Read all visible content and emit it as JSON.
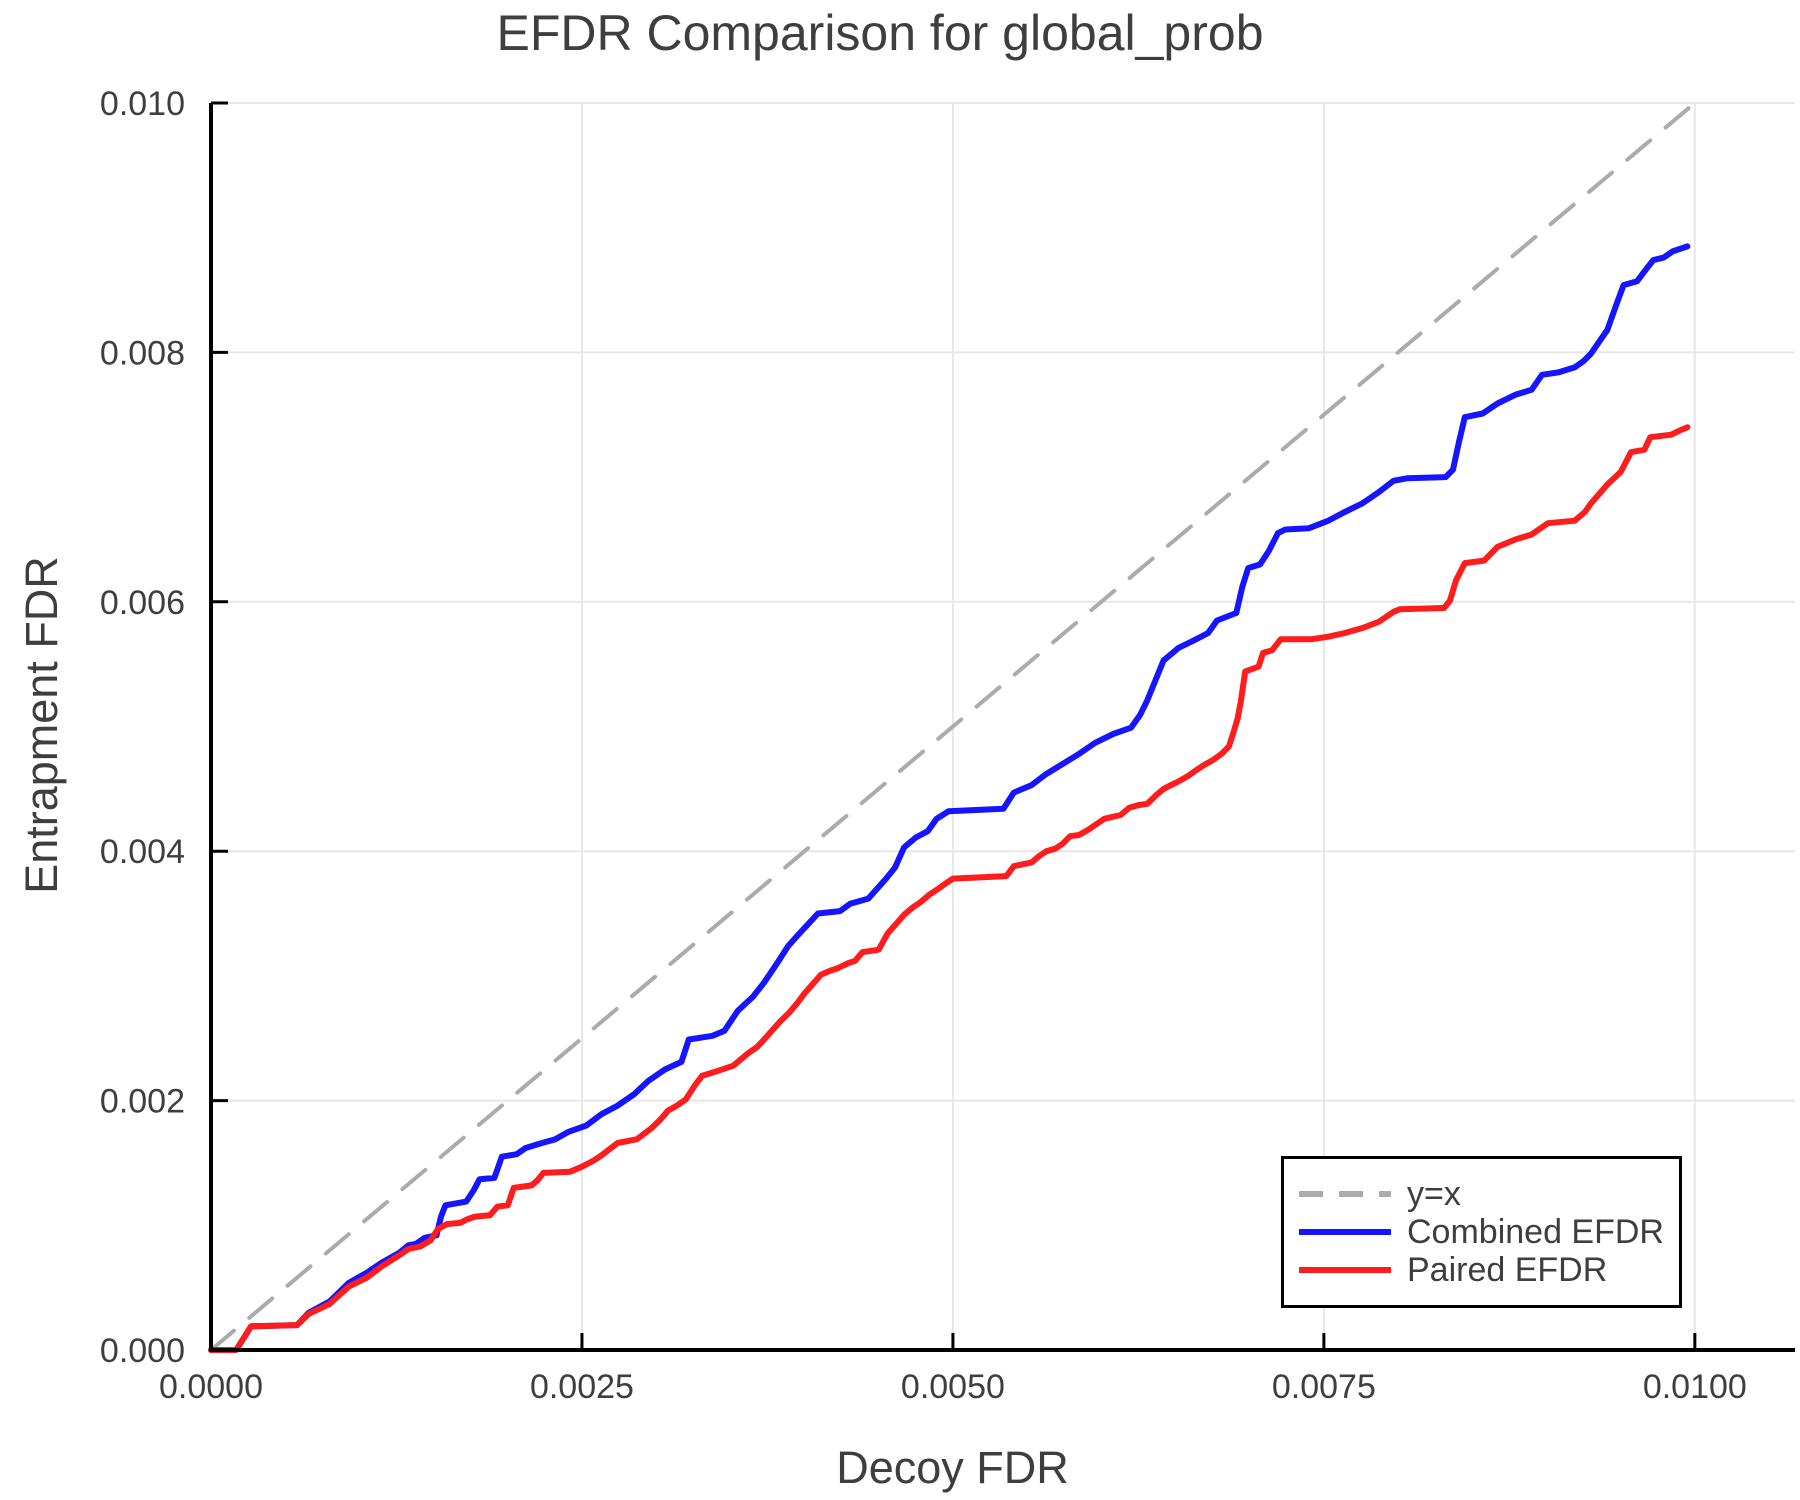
{
  "chart_data": {
    "type": "line",
    "title": "EFDR Comparison for global_prob",
    "xlabel": "Decoy FDR",
    "ylabel": "Entrapment FDR",
    "xlim": [
      0,
      0.010675
    ],
    "ylim": [
      0,
      0.01
    ],
    "grid": true,
    "legend_position": "lower right",
    "colors": {
      "text": "#3e3e3e",
      "axis": "#000000",
      "grid": "#e7e7e7"
    },
    "x_ticks": {
      "values": [
        0.0,
        0.0025,
        0.005,
        0.0075,
        0.01
      ],
      "labels": [
        "0.0000",
        "0.0025",
        "0.0050",
        "0.0075",
        "0.0100"
      ]
    },
    "y_ticks": {
      "values": [
        0.0,
        0.002,
        0.004,
        0.006,
        0.008,
        0.01
      ],
      "labels": [
        "0.000",
        "0.002",
        "0.004",
        "0.006",
        "0.008",
        "0.010"
      ]
    },
    "series": [
      {
        "name": "y=x",
        "color": "#ababab",
        "width": 4,
        "dash": [
          30,
          20
        ],
        "points": [
          [
            0.0,
            0.0
          ],
          [
            0.01,
            0.01
          ]
        ]
      },
      {
        "name": "Combined EFDR",
        "color": "#1515ff",
        "width": 6,
        "dash": null,
        "points": [
          [
            0.0,
            0.0
          ],
          [
            0.00017,
            0.0
          ],
          [
            0.00027,
            0.00019
          ],
          [
            0.00058,
            0.0002
          ],
          [
            0.00066,
            0.0003
          ],
          [
            0.0008,
            0.00039
          ],
          [
            0.00093,
            0.00054
          ],
          [
            0.00105,
            0.00062
          ],
          [
            0.00115,
            0.0007
          ],
          [
            0.00127,
            0.00078
          ],
          [
            0.00133,
            0.00084
          ],
          [
            0.00138,
            0.00085
          ],
          [
            0.00144,
            0.0009
          ],
          [
            0.00152,
            0.00092
          ],
          [
            0.00155,
            0.00107
          ],
          [
            0.00158,
            0.00116
          ],
          [
            0.00172,
            0.00119
          ],
          [
            0.00177,
            0.00128
          ],
          [
            0.00181,
            0.00137
          ],
          [
            0.00191,
            0.00138
          ],
          [
            0.00196,
            0.00155
          ],
          [
            0.00206,
            0.00157
          ],
          [
            0.00212,
            0.00162
          ],
          [
            0.00223,
            0.00166
          ],
          [
            0.00232,
            0.00169
          ],
          [
            0.00241,
            0.00175
          ],
          [
            0.00253,
            0.0018
          ],
          [
            0.00263,
            0.00189
          ],
          [
            0.00274,
            0.00196
          ],
          [
            0.00285,
            0.00205
          ],
          [
            0.00295,
            0.00216
          ],
          [
            0.00306,
            0.00225
          ],
          [
            0.00317,
            0.00231
          ],
          [
            0.00322,
            0.00249
          ],
          [
            0.00338,
            0.00252
          ],
          [
            0.00346,
            0.00256
          ],
          [
            0.00355,
            0.00272
          ],
          [
            0.00365,
            0.00283
          ],
          [
            0.00373,
            0.00295
          ],
          [
            0.00382,
            0.00311
          ],
          [
            0.00389,
            0.00324
          ],
          [
            0.00395,
            0.00332
          ],
          [
            0.00402,
            0.00341
          ],
          [
            0.00409,
            0.0035
          ],
          [
            0.00424,
            0.00352
          ],
          [
            0.00431,
            0.00358
          ],
          [
            0.00443,
            0.00362
          ],
          [
            0.00449,
            0.0037
          ],
          [
            0.00455,
            0.00378
          ],
          [
            0.00461,
            0.00387
          ],
          [
            0.00467,
            0.00403
          ],
          [
            0.00475,
            0.00411
          ],
          [
            0.00483,
            0.00416
          ],
          [
            0.00489,
            0.00426
          ],
          [
            0.00497,
            0.00432
          ],
          [
            0.00534,
            0.00434
          ],
          [
            0.00541,
            0.00447
          ],
          [
            0.00553,
            0.00453
          ],
          [
            0.00563,
            0.00462
          ],
          [
            0.00574,
            0.0047
          ],
          [
            0.00585,
            0.00478
          ],
          [
            0.00596,
            0.00487
          ],
          [
            0.00608,
            0.00494
          ],
          [
            0.0062,
            0.00499
          ],
          [
            0.00626,
            0.00509
          ],
          [
            0.00631,
            0.00521
          ],
          [
            0.00642,
            0.00553
          ],
          [
            0.00652,
            0.00563
          ],
          [
            0.00664,
            0.0057
          ],
          [
            0.00672,
            0.00575
          ],
          [
            0.00678,
            0.00585
          ],
          [
            0.00691,
            0.00591
          ],
          [
            0.00695,
            0.00612
          ],
          [
            0.00699,
            0.00627
          ],
          [
            0.00707,
            0.0063
          ],
          [
            0.00713,
            0.00641
          ],
          [
            0.00719,
            0.00655
          ],
          [
            0.00724,
            0.00658
          ],
          [
            0.0074,
            0.00659
          ],
          [
            0.00753,
            0.00665
          ],
          [
            0.00764,
            0.00672
          ],
          [
            0.00776,
            0.00679
          ],
          [
            0.00787,
            0.00688
          ],
          [
            0.00797,
            0.00697
          ],
          [
            0.00806,
            0.00699
          ],
          [
            0.00832,
            0.007
          ],
          [
            0.00837,
            0.00706
          ],
          [
            0.00841,
            0.00728
          ],
          [
            0.00845,
            0.00748
          ],
          [
            0.00857,
            0.00751
          ],
          [
            0.00867,
            0.00759
          ],
          [
            0.00879,
            0.00766
          ],
          [
            0.0089,
            0.0077
          ],
          [
            0.00897,
            0.00782
          ],
          [
            0.00908,
            0.00784
          ],
          [
            0.00919,
            0.00788
          ],
          [
            0.00925,
            0.00793
          ],
          [
            0.0093,
            0.00799
          ],
          [
            0.00941,
            0.00818
          ],
          [
            0.00947,
            0.00838
          ],
          [
            0.00952,
            0.00854
          ],
          [
            0.00961,
            0.00857
          ],
          [
            0.00968,
            0.00868
          ],
          [
            0.00972,
            0.00874
          ],
          [
            0.00979,
            0.00876
          ],
          [
            0.00985,
            0.00881
          ],
          [
            0.00995,
            0.00885
          ]
        ]
      },
      {
        "name": "Paired EFDR",
        "color": "#ff1c1c",
        "width": 6,
        "dash": null,
        "points": [
          [
            0.0,
            0.0
          ],
          [
            0.00017,
            0.0
          ],
          [
            0.00027,
            0.00019
          ],
          [
            0.00058,
            0.0002
          ],
          [
            0.00066,
            0.00029
          ],
          [
            0.0008,
            0.00037
          ],
          [
            0.00093,
            0.00051
          ],
          [
            0.00105,
            0.00058
          ],
          [
            0.00115,
            0.00067
          ],
          [
            0.00127,
            0.00076
          ],
          [
            0.00133,
            0.00081
          ],
          [
            0.00141,
            0.00083
          ],
          [
            0.00148,
            0.00088
          ],
          [
            0.00153,
            0.00097
          ],
          [
            0.00159,
            0.00101
          ],
          [
            0.00168,
            0.00102
          ],
          [
            0.00173,
            0.00105
          ],
          [
            0.00178,
            0.00107
          ],
          [
            0.00188,
            0.00108
          ],
          [
            0.00193,
            0.00115
          ],
          [
            0.002,
            0.00116
          ],
          [
            0.00204,
            0.0013
          ],
          [
            0.00216,
            0.00132
          ],
          [
            0.0022,
            0.00136
          ],
          [
            0.00224,
            0.00142
          ],
          [
            0.00242,
            0.00143
          ],
          [
            0.0025,
            0.00147
          ],
          [
            0.00258,
            0.00152
          ],
          [
            0.00263,
            0.00156
          ],
          [
            0.00274,
            0.00166
          ],
          [
            0.00287,
            0.00169
          ],
          [
            0.00297,
            0.00178
          ],
          [
            0.00303,
            0.00185
          ],
          [
            0.00308,
            0.00192
          ],
          [
            0.00314,
            0.00196
          ],
          [
            0.0032,
            0.00201
          ],
          [
            0.00326,
            0.00212
          ],
          [
            0.00331,
            0.0022
          ],
          [
            0.00342,
            0.00224
          ],
          [
            0.00352,
            0.00228
          ],
          [
            0.00362,
            0.00238
          ],
          [
            0.00368,
            0.00243
          ],
          [
            0.00372,
            0.00248
          ],
          [
            0.00378,
            0.00256
          ],
          [
            0.00384,
            0.00264
          ],
          [
            0.0039,
            0.00271
          ],
          [
            0.00395,
            0.00278
          ],
          [
            0.004,
            0.00286
          ],
          [
            0.00406,
            0.00294
          ],
          [
            0.00411,
            0.00301
          ],
          [
            0.00417,
            0.00304
          ],
          [
            0.00422,
            0.00306
          ],
          [
            0.00429,
            0.0031
          ],
          [
            0.00434,
            0.00312
          ],
          [
            0.00439,
            0.00319
          ],
          [
            0.0045,
            0.00321
          ],
          [
            0.00456,
            0.00334
          ],
          [
            0.00462,
            0.00342
          ],
          [
            0.00467,
            0.00349
          ],
          [
            0.00473,
            0.00355
          ],
          [
            0.00478,
            0.00359
          ],
          [
            0.00484,
            0.00365
          ],
          [
            0.00489,
            0.00369
          ],
          [
            0.00495,
            0.00374
          ],
          [
            0.005,
            0.00378
          ],
          [
            0.00536,
            0.0038
          ],
          [
            0.00541,
            0.00388
          ],
          [
            0.00553,
            0.00391
          ],
          [
            0.00558,
            0.00396
          ],
          [
            0.00563,
            0.004
          ],
          [
            0.00569,
            0.00402
          ],
          [
            0.00574,
            0.00406
          ],
          [
            0.00579,
            0.00412
          ],
          [
            0.00585,
            0.00413
          ],
          [
            0.00591,
            0.00417
          ],
          [
            0.00597,
            0.00422
          ],
          [
            0.00602,
            0.00426
          ],
          [
            0.00613,
            0.00429
          ],
          [
            0.00619,
            0.00435
          ],
          [
            0.00625,
            0.00437
          ],
          [
            0.00631,
            0.00438
          ],
          [
            0.00637,
            0.00445
          ],
          [
            0.00642,
            0.0045
          ],
          [
            0.00647,
            0.00453
          ],
          [
            0.00652,
            0.00456
          ],
          [
            0.00658,
            0.0046
          ],
          [
            0.00664,
            0.00465
          ],
          [
            0.00669,
            0.00469
          ],
          [
            0.00675,
            0.00473
          ],
          [
            0.00681,
            0.00478
          ],
          [
            0.00686,
            0.00484
          ],
          [
            0.00689,
            0.00495
          ],
          [
            0.00692,
            0.00507
          ],
          [
            0.00694,
            0.0052
          ],
          [
            0.00697,
            0.00544
          ],
          [
            0.00706,
            0.00548
          ],
          [
            0.00709,
            0.00559
          ],
          [
            0.00715,
            0.00561
          ],
          [
            0.00721,
            0.0057
          ],
          [
            0.00742,
            0.0057
          ],
          [
            0.00753,
            0.00572
          ],
          [
            0.00764,
            0.00575
          ],
          [
            0.00776,
            0.00579
          ],
          [
            0.00787,
            0.00584
          ],
          [
            0.00797,
            0.00592
          ],
          [
            0.00801,
            0.00594
          ],
          [
            0.00831,
            0.00595
          ],
          [
            0.00835,
            0.00601
          ],
          [
            0.00839,
            0.00617
          ],
          [
            0.00845,
            0.00631
          ],
          [
            0.00858,
            0.00633
          ],
          [
            0.00867,
            0.00644
          ],
          [
            0.00879,
            0.0065
          ],
          [
            0.0089,
            0.00654
          ],
          [
            0.00901,
            0.00663
          ],
          [
            0.00919,
            0.00665
          ],
          [
            0.00926,
            0.00672
          ],
          [
            0.0093,
            0.00679
          ],
          [
            0.00941,
            0.00694
          ],
          [
            0.0095,
            0.00704
          ],
          [
            0.00957,
            0.0072
          ],
          [
            0.00966,
            0.00722
          ],
          [
            0.0097,
            0.00732
          ],
          [
            0.00984,
            0.00734
          ],
          [
            0.00991,
            0.00738
          ],
          [
            0.00995,
            0.0074
          ]
        ]
      }
    ]
  }
}
